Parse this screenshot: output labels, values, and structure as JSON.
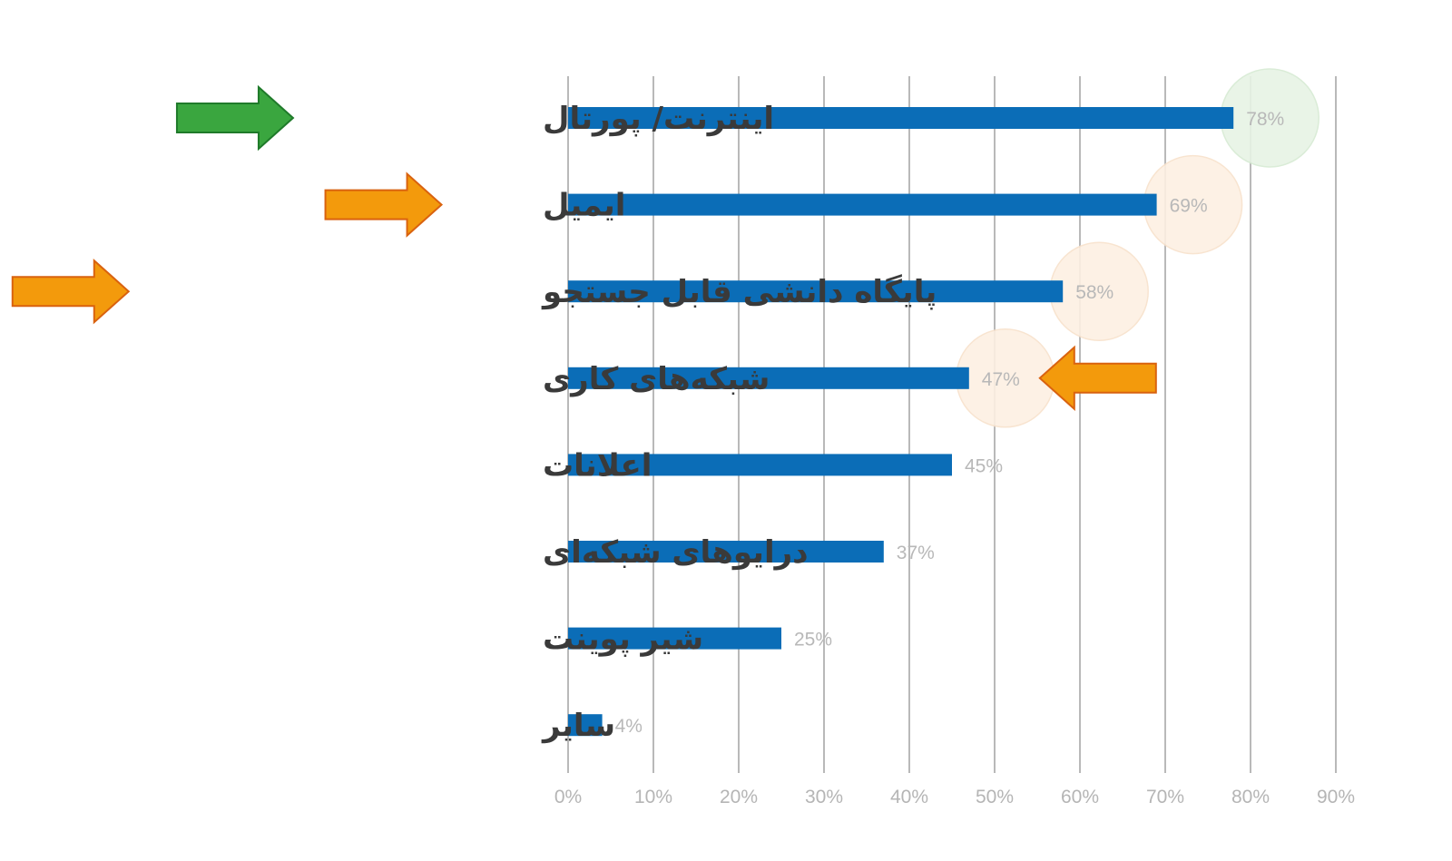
{
  "chart_data": {
    "type": "bar",
    "orientation": "horizontal",
    "categories": [
      "اینترنت/ پورتال",
      "ایمیل",
      "پایگاه دانشی قابل جستجو",
      "شبکه‌های کاری",
      "اعلانات",
      "درایوهای شبکه‌ای",
      "شیر پوینت",
      "سایر"
    ],
    "values": [
      78,
      69,
      58,
      47,
      45,
      37,
      25,
      4
    ],
    "data_labels": [
      "78%",
      "69%",
      "58%",
      "47%",
      "45%",
      "37%",
      "25%",
      "4%"
    ],
    "xlim": [
      0,
      90
    ],
    "x_ticks": [
      "0%",
      "10%",
      "20%",
      "30%",
      "40%",
      "50%",
      "60%",
      "70%",
      "80%",
      "90%"
    ],
    "grid": true,
    "title": "",
    "xlabel": "",
    "ylabel": "",
    "colors": {
      "bar": "#0b6db7",
      "grid": "#b9b9b9",
      "tick_text": "#b5b5b5",
      "category_text": "#3a3a3a",
      "highlight_green": "#3aa63f",
      "highlight_orange": "#f39a0c",
      "circle_green": "#e7f3e5",
      "circle_orange": "#fdf0e3"
    },
    "annotations": [
      {
        "type": "arrow",
        "icon": "right-arrow-icon",
        "color": "green",
        "category_index": 0,
        "side": "left-of-label"
      },
      {
        "type": "arrow",
        "icon": "right-arrow-icon",
        "color": "orange",
        "category_index": 1,
        "side": "left-of-label"
      },
      {
        "type": "arrow",
        "icon": "right-arrow-icon",
        "color": "orange",
        "category_index": 2,
        "side": "left-of-label"
      },
      {
        "type": "arrow",
        "icon": "left-arrow-icon",
        "color": "orange",
        "category_index": 3,
        "side": "right-of-bar"
      },
      {
        "type": "circle",
        "color": "green",
        "category_index": 0
      },
      {
        "type": "circle",
        "color": "orange",
        "category_index": 1
      },
      {
        "type": "circle",
        "color": "orange",
        "category_index": 2
      },
      {
        "type": "circle",
        "color": "orange",
        "category_index": 3
      }
    ]
  }
}
